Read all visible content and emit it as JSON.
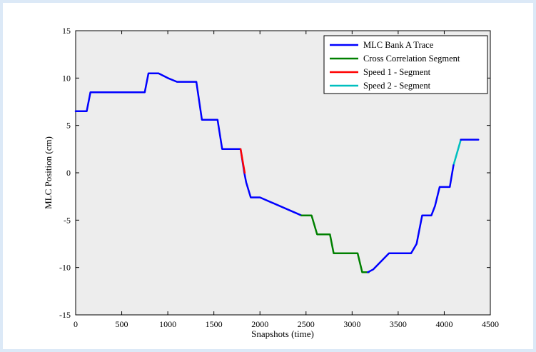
{
  "chart_data": {
    "type": "line",
    "title": "",
    "xlabel": "Snapshots (time)",
    "ylabel": "MLC Position (cm)",
    "xlim": [
      0,
      4500
    ],
    "ylim": [
      -15,
      15
    ],
    "xticks": [
      0,
      500,
      1000,
      1500,
      2000,
      2500,
      3000,
      3500,
      4000,
      4500
    ],
    "yticks": [
      15,
      10,
      5,
      0,
      -5,
      -10,
      -15
    ],
    "plot_background": "#ededed",
    "legend_position": "top-right",
    "series": [
      {
        "name": "MLC Bank A Trace",
        "color": "#0000ff",
        "x": [
          0,
          120,
          160,
          300,
          750,
          790,
          900,
          1000,
          1100,
          1310,
          1370,
          1540,
          1590,
          1790,
          1830,
          1850,
          1900,
          2000,
          2450
        ],
        "y": [
          6.5,
          6.5,
          8.5,
          8.5,
          8.5,
          10.5,
          10.5,
          10.0,
          9.6,
          9.6,
          5.6,
          5.6,
          2.5,
          2.5,
          0.0,
          -1.0,
          -2.6,
          -2.6,
          -4.5
        ]
      },
      {
        "name": "Cross Correlation Segment",
        "color": "#008000",
        "x": [
          2450,
          2560,
          2620,
          2760,
          2800,
          3060,
          3110,
          3180
        ],
        "y": [
          -4.5,
          -4.5,
          -6.5,
          -6.5,
          -8.5,
          -8.5,
          -10.5,
          -10.5
        ]
      },
      {
        "name": "Speed 1 - Segment",
        "color": "#ff0000",
        "x": [
          1790,
          1835
        ],
        "y": [
          2.5,
          0.0
        ]
      },
      {
        "name": "Speed 2 - Segment",
        "color": "#00bfbf",
        "x": [
          4100,
          4180
        ],
        "y": [
          0.8,
          3.5
        ]
      },
      {
        "name": "",
        "color": "#0000ff",
        "x": [
          3170,
          3230,
          3400,
          3640,
          3700,
          3760,
          3860,
          3900,
          3950,
          4060,
          4100
        ],
        "y": [
          -10.5,
          -10.2,
          -8.5,
          -8.5,
          -7.5,
          -4.5,
          -4.5,
          -3.5,
          -1.5,
          -1.5,
          0.8
        ]
      },
      {
        "name": "",
        "color": "#0000ff",
        "x": [
          4180,
          4370
        ],
        "y": [
          3.5,
          3.5
        ]
      }
    ]
  }
}
